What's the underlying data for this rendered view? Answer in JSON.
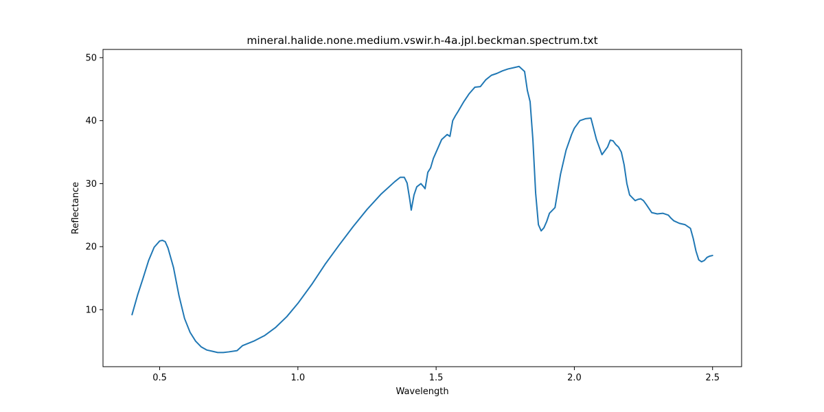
{
  "chart_data": {
    "type": "line",
    "title": "mineral.halide.none.medium.vswir.h-4a.jpl.beckman.spectrum.txt",
    "xlabel": "Wavelength",
    "ylabel": "Reflectance",
    "xlim": [
      0.295,
      2.605
    ],
    "ylim": [
      0.95,
      51.3
    ],
    "xticks": [
      0.5,
      1.0,
      1.5,
      2.0,
      2.5
    ],
    "xtick_labels": [
      "0.5",
      "1.0",
      "1.5",
      "2.0",
      "2.5"
    ],
    "yticks": [
      10,
      20,
      30,
      40,
      50
    ],
    "ytick_labels": [
      "10",
      "20",
      "30",
      "40",
      "50"
    ],
    "grid": false,
    "line_color": "#1f77b4",
    "series": [
      {
        "x": [
          0.4,
          0.42,
          0.44,
          0.46,
          0.48,
          0.5,
          0.51,
          0.52,
          0.53,
          0.55,
          0.57,
          0.59,
          0.61,
          0.63,
          0.65,
          0.67,
          0.69,
          0.71,
          0.73,
          0.75,
          0.78,
          0.8,
          0.84,
          0.88,
          0.92,
          0.96,
          1.0,
          1.05,
          1.1,
          1.15,
          1.2,
          1.25,
          1.3,
          1.35,
          1.37,
          1.385,
          1.395,
          1.405,
          1.41,
          1.42,
          1.43,
          1.445,
          1.455,
          1.46,
          1.47,
          1.48,
          1.49,
          1.5,
          1.52,
          1.54,
          1.55,
          1.56,
          1.57,
          1.58,
          1.6,
          1.62,
          1.64,
          1.66,
          1.68,
          1.7,
          1.72,
          1.74,
          1.76,
          1.78,
          1.8,
          1.82,
          1.83,
          1.84,
          1.85,
          1.86,
          1.87,
          1.88,
          1.89,
          1.9,
          1.91,
          1.93,
          1.95,
          1.97,
          1.99,
          2.0,
          2.02,
          2.04,
          2.06,
          2.08,
          2.1,
          2.12,
          2.13,
          2.14,
          2.15,
          2.16,
          2.17,
          2.18,
          2.19,
          2.2,
          2.22,
          2.23,
          2.24,
          2.25,
          2.26,
          2.28,
          2.3,
          2.32,
          2.34,
          2.35,
          2.36,
          2.38,
          2.4,
          2.42,
          2.43,
          2.44,
          2.45,
          2.46,
          2.47,
          2.48,
          2.49,
          2.5
        ],
        "y": [
          9.2,
          12.3,
          15.0,
          17.8,
          19.9,
          20.9,
          21.0,
          20.8,
          19.8,
          16.7,
          12.2,
          8.6,
          6.4,
          5.0,
          4.1,
          3.6,
          3.4,
          3.2,
          3.2,
          3.3,
          3.5,
          4.3,
          5.0,
          5.9,
          7.2,
          8.9,
          11.0,
          14.0,
          17.3,
          20.3,
          23.2,
          25.9,
          28.3,
          30.3,
          31.0,
          31.0,
          30.1,
          27.4,
          25.8,
          28.2,
          29.5,
          30.0,
          29.5,
          29.2,
          31.8,
          32.5,
          34.0,
          35.0,
          37.0,
          37.8,
          37.5,
          40.0,
          40.8,
          41.5,
          43.0,
          44.3,
          45.3,
          45.4,
          46.5,
          47.2,
          47.5,
          47.9,
          48.2,
          48.4,
          48.6,
          47.8,
          44.8,
          43.0,
          37.0,
          28.5,
          23.5,
          22.5,
          23.0,
          24.0,
          25.3,
          26.2,
          31.5,
          35.3,
          37.8,
          38.8,
          40.0,
          40.3,
          40.4,
          37.0,
          34.6,
          35.8,
          36.9,
          36.8,
          36.2,
          35.8,
          35.0,
          33.0,
          30.0,
          28.2,
          27.3,
          27.5,
          27.6,
          27.3,
          26.7,
          25.4,
          25.2,
          25.3,
          25.0,
          24.5,
          24.1,
          23.7,
          23.5,
          22.9,
          21.3,
          19.3,
          17.9,
          17.6,
          17.8,
          18.3,
          18.5,
          18.6
        ]
      }
    ]
  }
}
